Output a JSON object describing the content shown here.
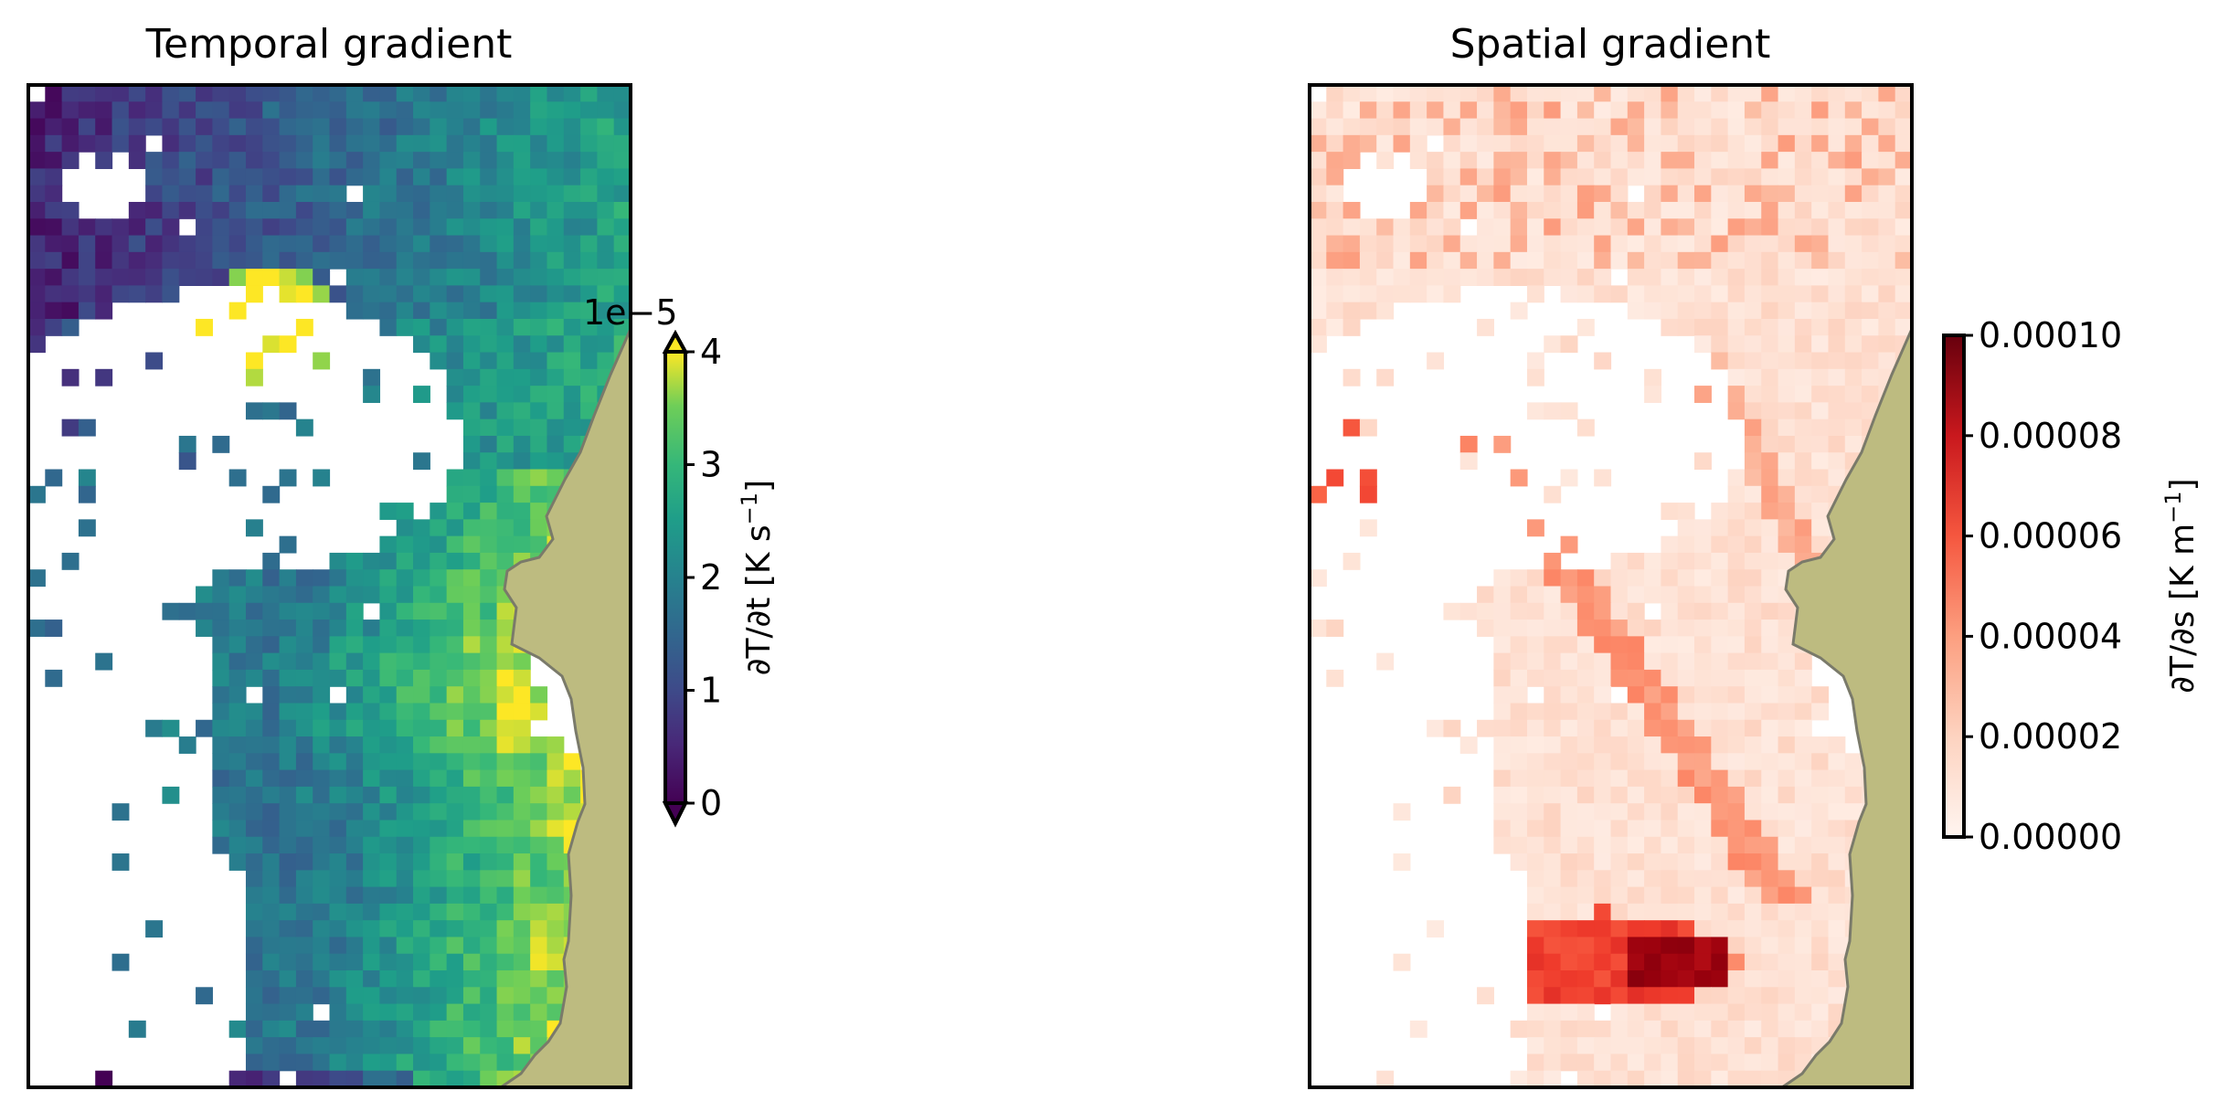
{
  "chart_data": [
    {
      "type": "heatmap",
      "title": "Temporal gradient",
      "colormap": "viridis",
      "colorbar": {
        "label_main": "∂T/∂t [K s",
        "label_sup": "−1",
        "label_close": "]",
        "multiplier": "1e−5",
        "ticks": [
          "0",
          "1",
          "2",
          "3",
          "4"
        ],
        "range": [
          0,
          4
        ],
        "extend": "both"
      },
      "grid": {
        "cols": 36,
        "rows": 60
      },
      "land_color": "#bdbb80",
      "coast_color": "#7a7a6a"
    },
    {
      "type": "heatmap",
      "title": "Spatial gradient",
      "colormap": "Reds",
      "colorbar": {
        "label_main": "∂T/∂s [K m",
        "label_sup": "−1",
        "label_close": "]",
        "ticks": [
          "0.00000",
          "0.00002",
          "0.00004",
          "0.00006",
          "0.00008",
          "0.00010"
        ],
        "range": [
          0,
          0.0001
        ],
        "extend": "neither"
      },
      "grid": {
        "cols": 36,
        "rows": 60
      },
      "land_color": "#bdbb80",
      "coast_color": "#7a7a6a"
    }
  ]
}
